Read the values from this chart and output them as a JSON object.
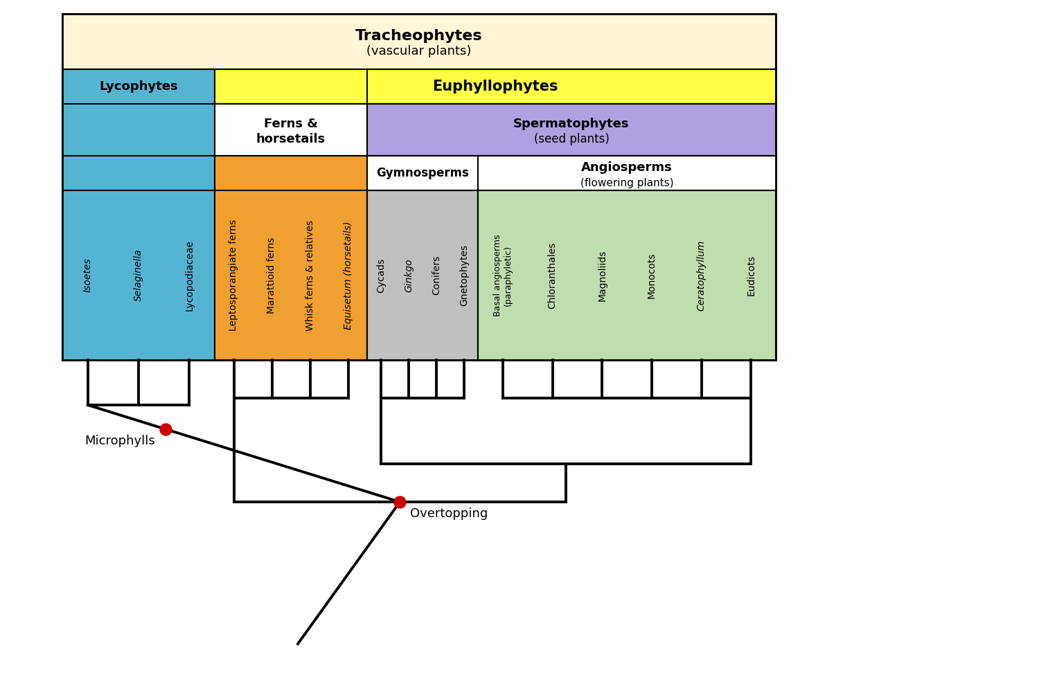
{
  "title_bg": "#fef5d4",
  "lyco_bg": "#56b4d3",
  "eupyllo_bg": "#ffff44",
  "ferns_bg": "#f0a030",
  "sperma_bg": "#b0a0e0",
  "gymno_bg": "#c0c0c0",
  "angio_bg": "#c0ddb0",
  "line_color": "#000000",
  "line_width": 2.8,
  "dot_color": "#cc0000",
  "dot_size": 100,
  "taxa": [
    {
      "name": "Isoetes",
      "italic": true,
      "group": "lycophytes"
    },
    {
      "name": "Selaginella",
      "italic": true,
      "group": "lycophytes"
    },
    {
      "name": "Lycopodiaceae",
      "italic": false,
      "group": "lycophytes"
    },
    {
      "name": "Leptosporangiate ferns",
      "italic": false,
      "group": "ferns"
    },
    {
      "name": "Marattioid ferns",
      "italic": false,
      "group": "ferns"
    },
    {
      "name": "Whisk ferns & relatives",
      "italic": false,
      "group": "ferns"
    },
    {
      "name": "Equisetum (horsetails)",
      "italic": true,
      "group": "ferns"
    },
    {
      "name": "Cycads",
      "italic": false,
      "group": "gymno"
    },
    {
      "name": "Ginkgo",
      "italic": true,
      "group": "gymno"
    },
    {
      "name": "Conifers",
      "italic": false,
      "group": "gymno"
    },
    {
      "name": "Gnetophytes",
      "italic": false,
      "group": "gymno"
    },
    {
      "name": "Basal angiosperms\n(paraphyletic)",
      "italic": false,
      "group": "angio"
    },
    {
      "name": "Chloranthales",
      "italic": false,
      "group": "angio"
    },
    {
      "name": "Magnoliids",
      "italic": false,
      "group": "angio"
    },
    {
      "name": "Monocots",
      "italic": false,
      "group": "angio"
    },
    {
      "name": "Ceratophyllum",
      "italic": true,
      "group": "angio"
    },
    {
      "name": "Eudicots",
      "italic": false,
      "group": "angio"
    }
  ]
}
